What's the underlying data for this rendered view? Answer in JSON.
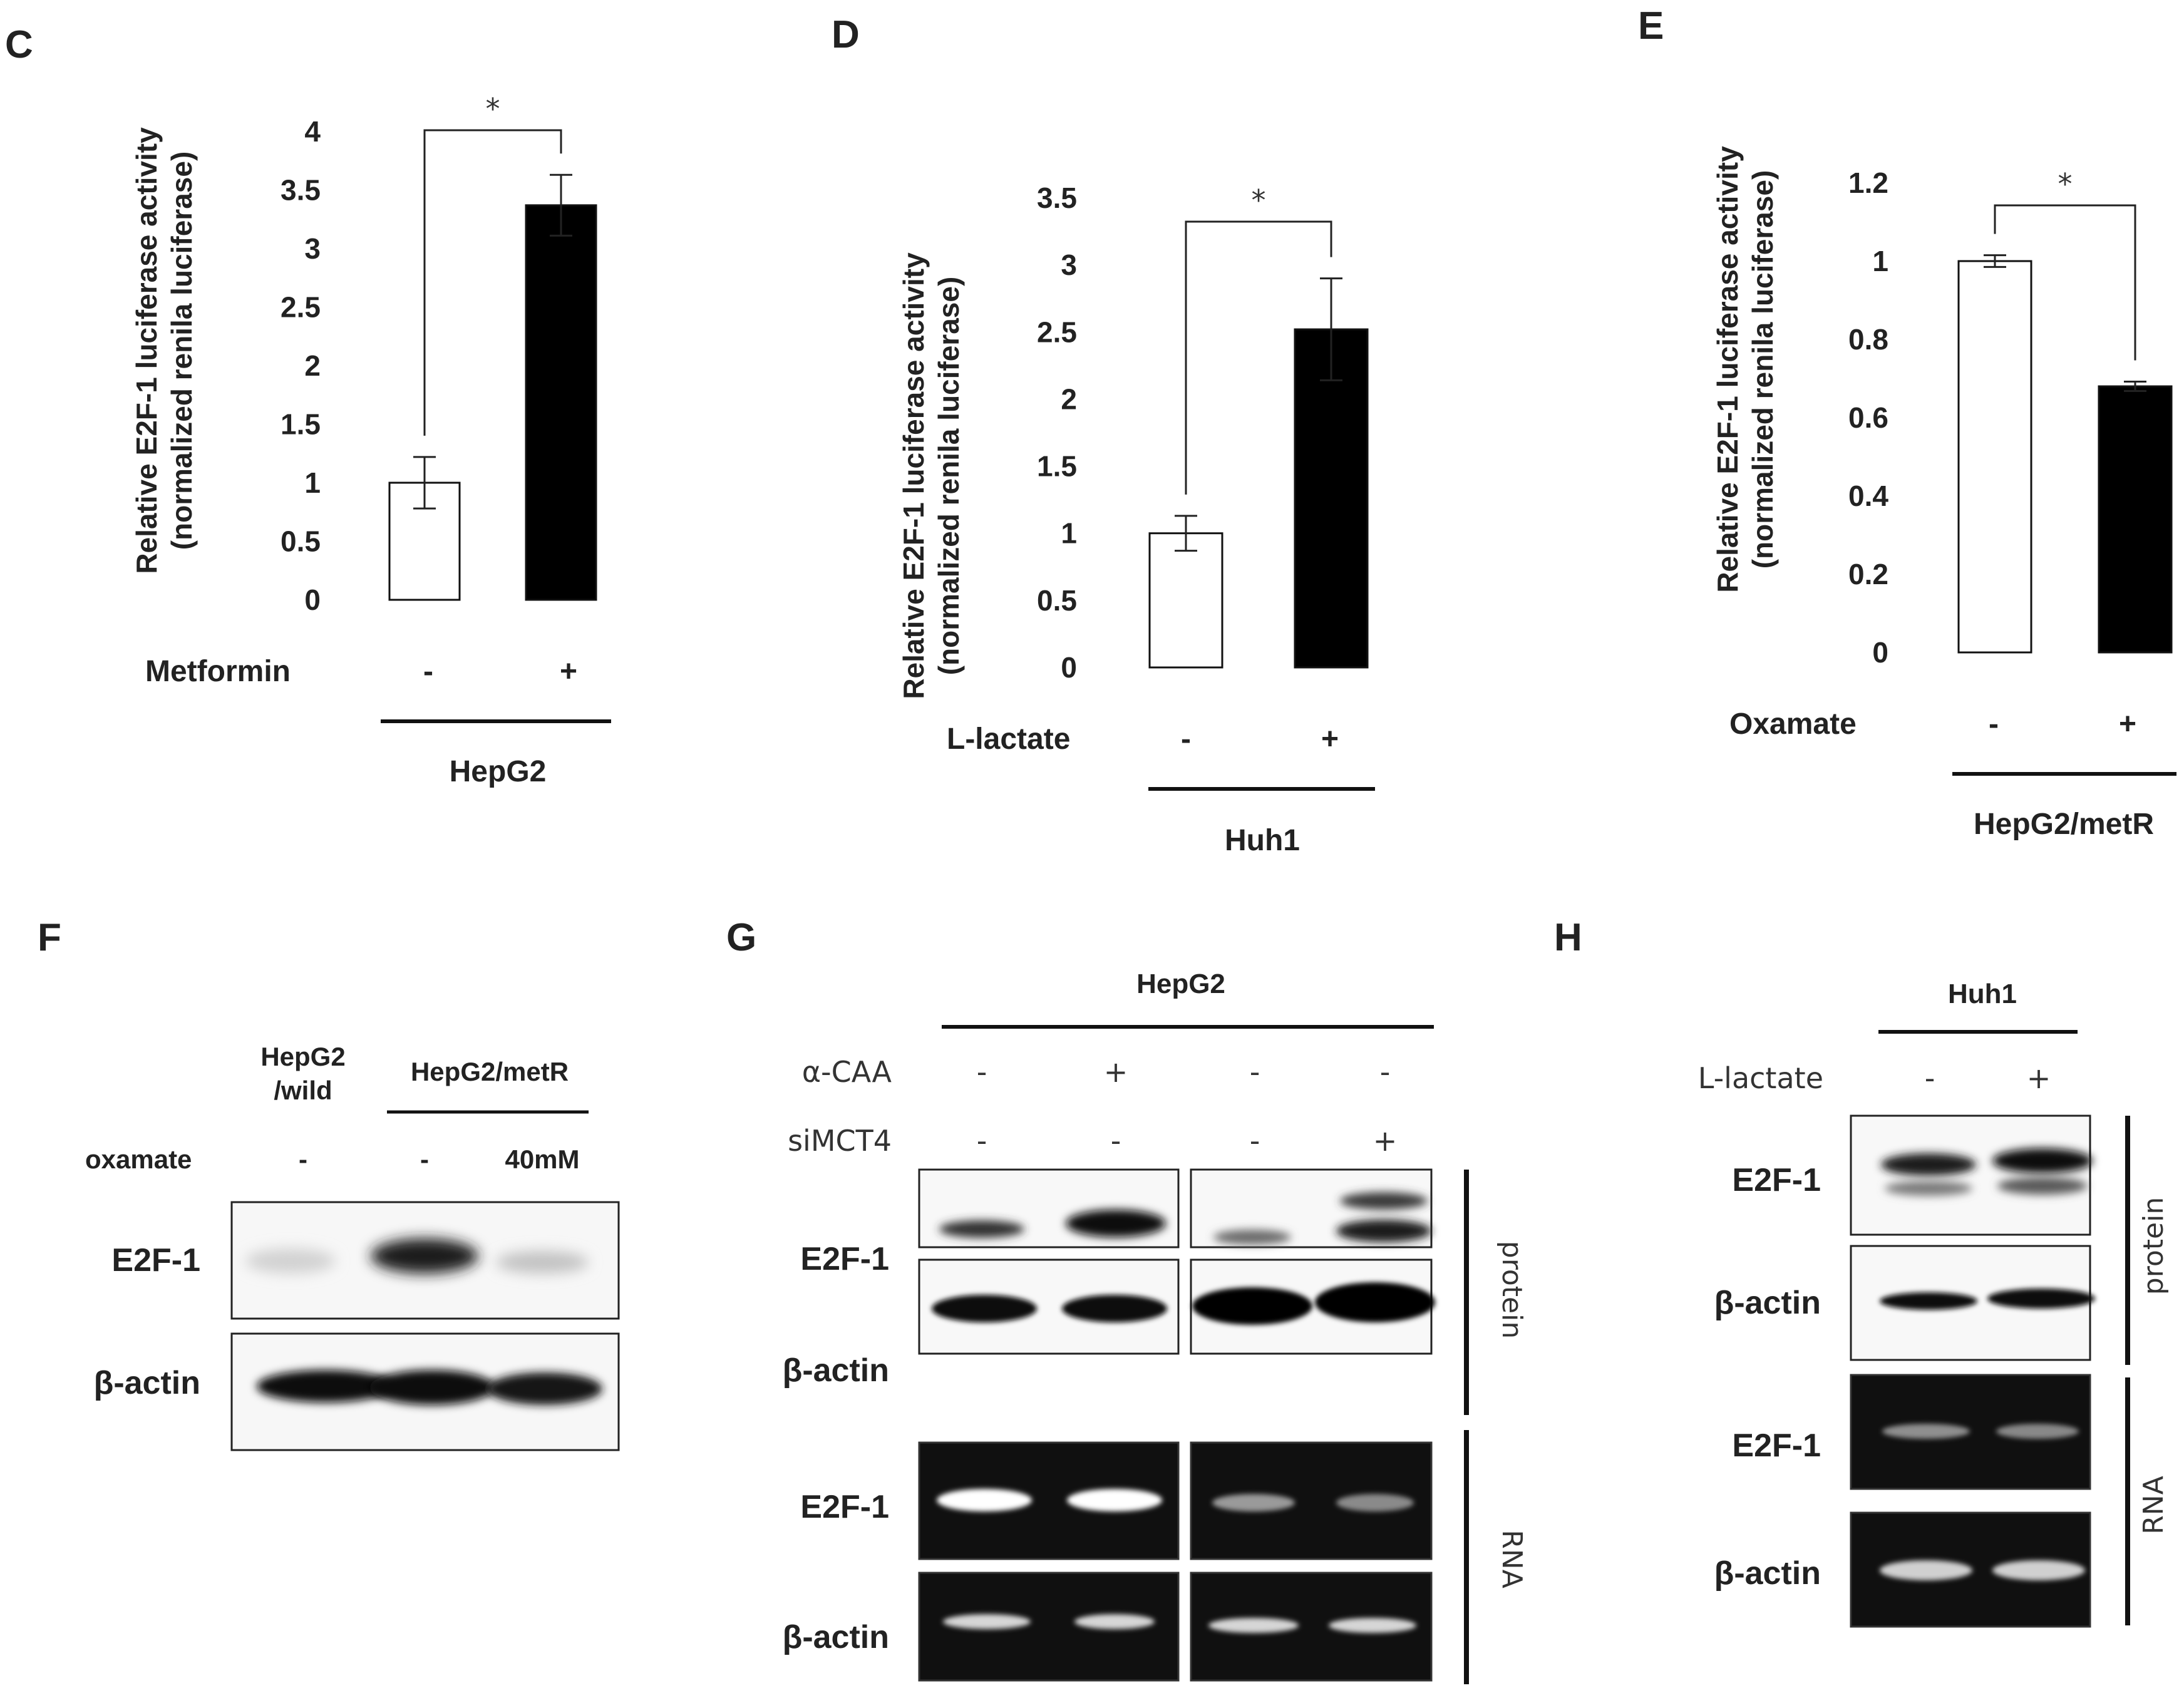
{
  "panels": {
    "C": {
      "letter": "C",
      "ylabel_1": "Relative E2F-1 luciferase activity",
      "ylabel_2": "(normalized renila luciferase)",
      "treatment_label": "Metformin",
      "cell_line": "HepG2",
      "signs": [
        "-",
        "+"
      ],
      "sig": "*"
    },
    "D": {
      "letter": "D",
      "ylabel_1": "Relative E2F-1 luciferase activity",
      "ylabel_2": "(normalized renila luciferase)",
      "treatment_label": "L-lactate",
      "cell_line": "Huh1",
      "signs": [
        "-",
        "+"
      ],
      "sig": "*"
    },
    "E": {
      "letter": "E",
      "ylabel_1": "Relative E2F-1 luciferase activity",
      "ylabel_2": "(normalized renila luciferase)",
      "treatment_label": "Oxamate",
      "cell_line": "HepG2/metR",
      "signs": [
        "-",
        "+"
      ],
      "sig": "*"
    },
    "F": {
      "letter": "F",
      "col1_line1": "HepG2",
      "col1_line2": "/wild",
      "group_label": "HepG2/metR",
      "treatment_label": "oxamate",
      "treatments": [
        "-",
        "-",
        "40mM"
      ],
      "rows": [
        "E2F-1",
        "β-actin"
      ]
    },
    "G": {
      "letter": "G",
      "cell_line": "HepG2",
      "treat1_label": "α-CAA",
      "treat1": [
        "-",
        "+",
        "-",
        "-"
      ],
      "treat2_label": "siMCT4",
      "treat2": [
        "-",
        "-",
        "-",
        "+"
      ],
      "rows": [
        "E2F-1",
        "β-actin",
        "E2F-1",
        "β-actin"
      ],
      "side_protein": "protein",
      "side_rna": "RNA"
    },
    "H": {
      "letter": "H",
      "cell_line": "Huh1",
      "treat_label": "L-lactate",
      "treat": [
        "-",
        "+"
      ],
      "rows": [
        "E2F-1",
        "β-actin",
        "E2F-1",
        "β-actin"
      ],
      "side_protein": "protein",
      "side_rna": "RNA"
    }
  },
  "chart_data": [
    {
      "type": "bar",
      "panel": "C",
      "categories": [
        "-",
        "+"
      ],
      "values": [
        1.0,
        3.37
      ],
      "errors": [
        0.22,
        0.26
      ],
      "colors": [
        "#ffffff",
        "#000000"
      ],
      "ylim": [
        0,
        4
      ],
      "yticks": [
        "0",
        "0.5",
        "1",
        "1.5",
        "2",
        "2.5",
        "3",
        "3.5",
        "4"
      ]
    },
    {
      "type": "bar",
      "panel": "D",
      "categories": [
        "-",
        "+"
      ],
      "values": [
        1.0,
        2.52
      ],
      "errors": [
        0.13,
        0.38
      ],
      "colors": [
        "#ffffff",
        "#000000"
      ],
      "ylim": [
        0,
        3.5
      ],
      "yticks": [
        "0",
        "0.5",
        "1",
        "1.5",
        "2",
        "2.5",
        "3",
        "3.5"
      ]
    },
    {
      "type": "bar",
      "panel": "E",
      "categories": [
        "-",
        "+"
      ],
      "values": [
        1.0,
        0.68
      ],
      "errors": [
        0.015,
        0.012
      ],
      "colors": [
        "#ffffff",
        "#000000"
      ],
      "ylim": [
        0,
        1.2
      ],
      "yticks": [
        "0",
        "0.2",
        "0.4",
        "0.6",
        "0.8",
        "1",
        "1.2"
      ]
    }
  ]
}
